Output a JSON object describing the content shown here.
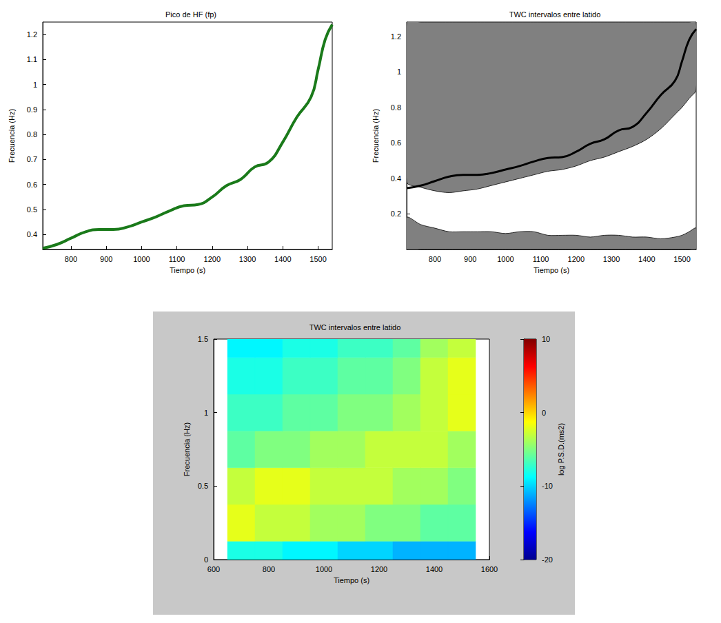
{
  "chart_data": [
    {
      "type": "line",
      "title": "Pico de HF (fp)",
      "x_label": "Tiempo (s)",
      "y_label": "Frecuencia (Hz)",
      "x": [
        720,
        760,
        800,
        840,
        880,
        920,
        960,
        1000,
        1040,
        1080,
        1120,
        1160,
        1200,
        1240,
        1280,
        1320,
        1360,
        1400,
        1440,
        1480,
        1500,
        1520,
        1540
      ],
      "values": [
        0.345,
        0.36,
        0.385,
        0.41,
        0.42,
        0.42,
        0.43,
        0.45,
        0.47,
        0.495,
        0.515,
        0.52,
        0.55,
        0.595,
        0.62,
        0.67,
        0.69,
        0.77,
        0.87,
        0.95,
        1.06,
        1.18,
        1.24
      ],
      "color": "#1a7a1a",
      "xlim": [
        720,
        1540
      ],
      "ylim": [
        0.34,
        1.25
      ],
      "xticks": [
        800,
        900,
        1000,
        1100,
        1200,
        1300,
        1400,
        1500
      ],
      "yticks": [
        0.4,
        0.5,
        0.6,
        0.7,
        0.8,
        0.9,
        1,
        1.1,
        1.2
      ],
      "grid": false
    },
    {
      "type": "contour",
      "title": "TWC intervalos entre latido",
      "x_label": "Tiempo (s)",
      "y_label": "Frecuencia (Hz)",
      "x": [
        720,
        760,
        800,
        840,
        880,
        920,
        960,
        1000,
        1040,
        1080,
        1120,
        1160,
        1200,
        1240,
        1280,
        1320,
        1360,
        1400,
        1440,
        1480,
        1500,
        1520,
        1540
      ],
      "values": [
        0.345,
        0.36,
        0.385,
        0.41,
        0.42,
        0.42,
        0.43,
        0.45,
        0.47,
        0.495,
        0.515,
        0.52,
        0.55,
        0.595,
        0.62,
        0.67,
        0.69,
        0.77,
        0.87,
        0.95,
        1.06,
        1.18,
        1.24
      ],
      "color": "#000000",
      "bands": [
        {
          "color": "#808080",
          "lower": [
            0.38,
            0.35,
            0.33,
            0.32,
            0.33,
            0.34,
            0.36,
            0.38,
            0.4,
            0.42,
            0.44,
            0.45,
            0.47,
            0.5,
            0.52,
            0.55,
            0.58,
            0.62,
            0.68,
            0.76,
            0.8,
            0.85,
            0.9
          ],
          "upper": [
            1.28,
            1.28,
            1.28,
            1.28,
            1.28,
            1.28,
            1.28,
            1.28,
            1.28,
            1.28,
            1.28,
            1.28,
            1.28,
            1.28,
            1.28,
            1.28,
            1.28,
            1.28,
            1.28,
            1.28,
            1.28,
            1.28,
            1.28
          ]
        },
        {
          "color": "#808080",
          "lower": [
            0,
            0,
            0,
            0,
            0,
            0,
            0,
            0,
            0,
            0,
            0,
            0,
            0,
            0,
            0,
            0,
            0,
            0,
            0,
            0,
            0,
            0,
            0
          ],
          "upper": [
            0.18,
            0.14,
            0.12,
            0.1,
            0.1,
            0.1,
            0.1,
            0.09,
            0.1,
            0.1,
            0.08,
            0.08,
            0.08,
            0.07,
            0.08,
            0.08,
            0.07,
            0.07,
            0.06,
            0.07,
            0.08,
            0.1,
            0.12
          ]
        }
      ],
      "xlim": [
        720,
        1540
      ],
      "ylim": [
        0,
        1.28
      ],
      "xticks": [
        800,
        900,
        1000,
        1100,
        1200,
        1300,
        1400,
        1500
      ],
      "yticks": [
        0.2,
        0.4,
        0.6,
        0.8,
        1,
        1.2
      ],
      "grid": false
    },
    {
      "type": "heatmap",
      "title": "TWC intervalos entre latido",
      "x_label": "Tiempo (s)",
      "y_label": "Frecuencia (Hz)",
      "z_label": "log P.S.D.(ms2)",
      "x": [
        700,
        800,
        900,
        1000,
        1100,
        1200,
        1300,
        1400,
        1500
      ],
      "y": [
        0,
        0.25,
        0.5,
        0.75,
        1,
        1.25,
        1.5
      ],
      "values": [
        [
          -8,
          -8,
          -9,
          -9,
          -10,
          -10,
          -11,
          -11,
          -11
        ],
        [
          -2,
          -3,
          -3,
          -4,
          -4,
          -5,
          -5,
          -6,
          -6
        ],
        [
          -3,
          -2,
          -2,
          -3,
          -3,
          -3,
          -4,
          -4,
          -5
        ],
        [
          -6,
          -5,
          -5,
          -4,
          -4,
          -3,
          -3,
          -3,
          -4
        ],
        [
          -7,
          -7,
          -6,
          -6,
          -5,
          -5,
          -4,
          -3,
          -2
        ],
        [
          -8,
          -8,
          -7,
          -7,
          -6,
          -6,
          -5,
          -3,
          -2
        ],
        [
          -9,
          -9,
          -8,
          -8,
          -7,
          -7,
          -6,
          -4,
          -3
        ]
      ],
      "xlim": [
        600,
        1600
      ],
      "ylim": [
        0,
        1.5
      ],
      "xticks": [
        600,
        800,
        1000,
        1200,
        1400,
        1600
      ],
      "yticks": [
        0,
        0.5,
        1,
        1.5
      ],
      "zlim": [
        -20,
        10
      ],
      "zticks": [
        -20,
        -10,
        0,
        10
      ],
      "grid": false
    }
  ]
}
